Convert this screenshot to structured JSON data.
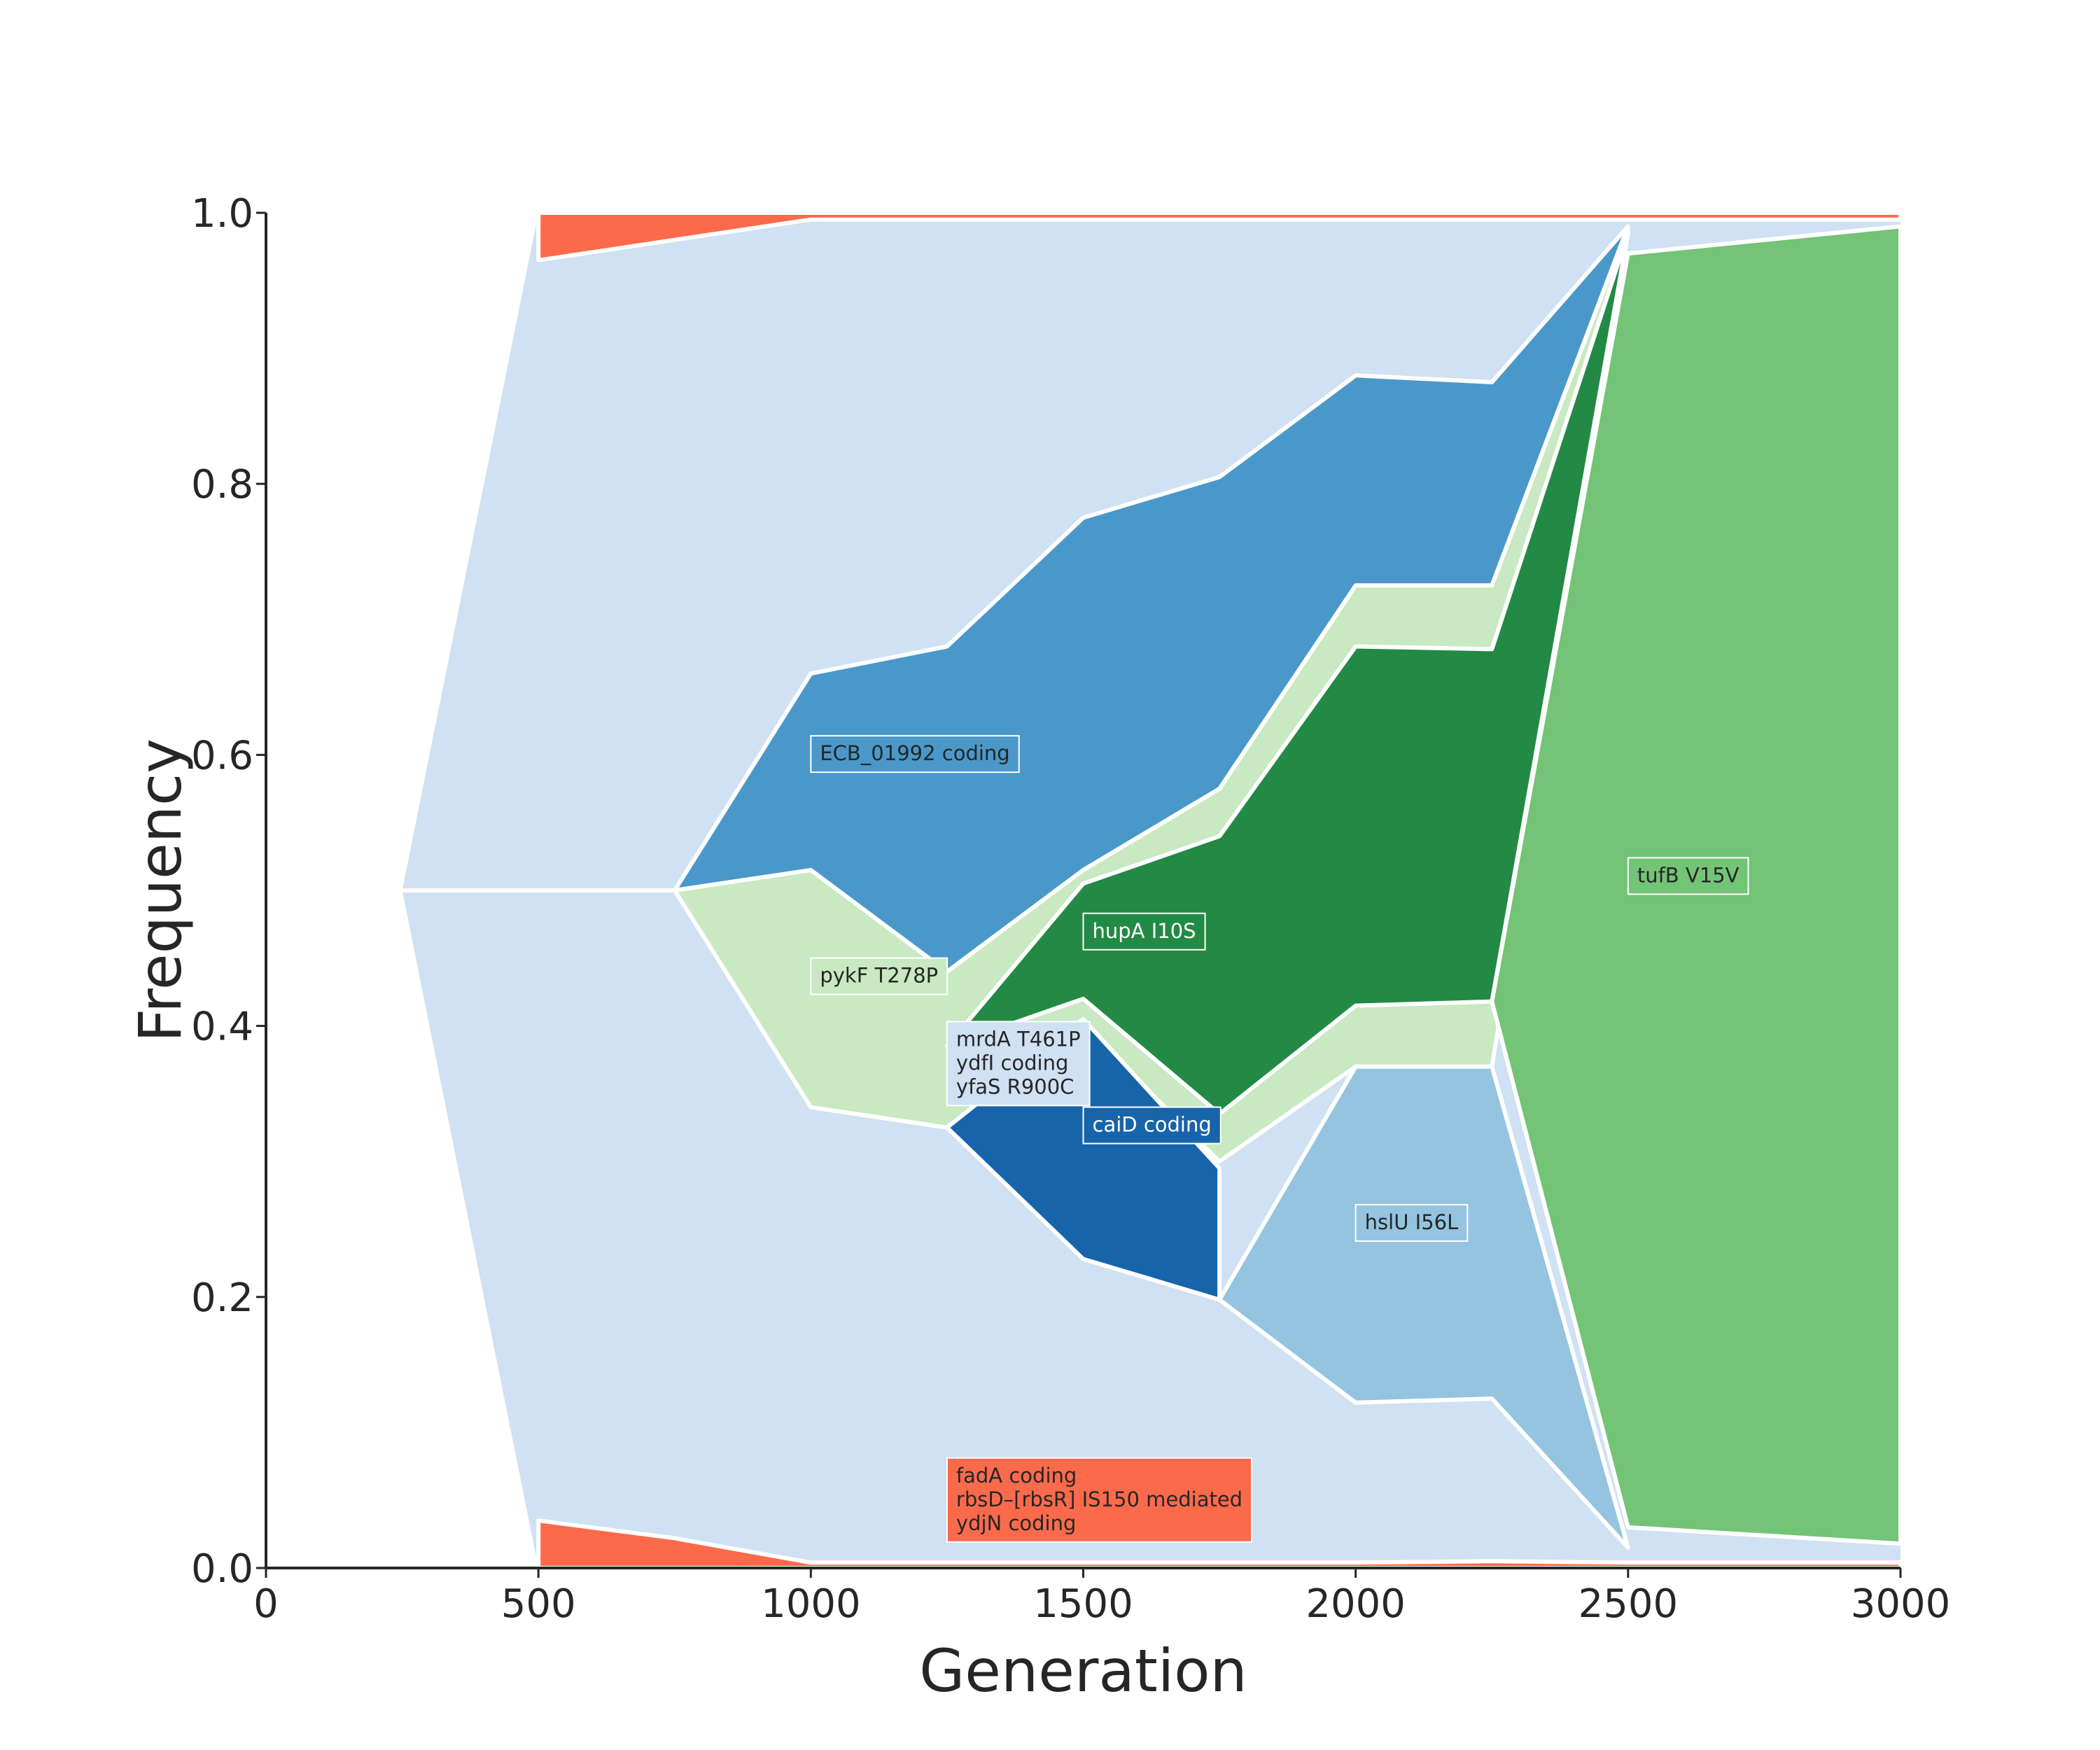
{
  "chart_data": {
    "type": "area",
    "subtype": "muller-plot",
    "title": "",
    "xlabel": "Generation",
    "ylabel": "Frequency",
    "xlim": [
      0,
      3000
    ],
    "ylim": [
      0,
      1
    ],
    "xticks": [
      0,
      500,
      1000,
      1500,
      2000,
      2500,
      3000
    ],
    "xtick_labels": [
      "0",
      "500",
      "1000",
      "1500",
      "2000",
      "2500",
      "3000"
    ],
    "yticks": [
      0,
      0.2,
      0.4,
      0.6,
      0.8,
      1.0
    ],
    "ytick_labels": [
      "0.0",
      "0.2",
      "0.4",
      "0.6",
      "0.8",
      "1.0"
    ],
    "grid": false,
    "legend": "none",
    "colors": {
      "ancestor": "#cfe1f2",
      "orange": "#fc6a4c",
      "ecb": "#4a98c9",
      "pale_green": "#c8e9c1",
      "dark_green": "#228a44",
      "dark_blue": "#1764ab",
      "mid_blue": "#94c4df",
      "mid_green": "#73c476",
      "border": "#ffffff"
    },
    "series": [
      {
        "name": "fadA coding / rbsD–[rbsR] IS150 mediated / ydjN coding",
        "color": "#fc6a4c",
        "x": [
          500,
          750,
          1000,
          1250,
          1500,
          1750,
          2000,
          2250,
          2500,
          3000
        ],
        "top": [
          1.0,
          1.0,
          1.0,
          1.0,
          1.0,
          1.0,
          1.0,
          1.0,
          1.0,
          1.0
        ],
        "bottom": [
          0.965,
          0.98,
          0.995,
          0.995,
          0.995,
          0.995,
          0.995,
          0.995,
          0.995,
          0.995
        ]
      },
      {
        "name": "fadA coding / rbsD–[rbsR] IS150 mediated / ydjN coding",
        "color": "#fc6a4c",
        "x": [
          500,
          750,
          1000,
          1250,
          1500,
          1750,
          2000,
          2250,
          2500,
          3000
        ],
        "top": [
          0.035,
          0.022,
          0.004,
          0.004,
          0.004,
          0.004,
          0.004,
          0.005,
          0.004,
          0.004
        ],
        "bottom": [
          0,
          0,
          0,
          0,
          0,
          0,
          0,
          0,
          0,
          0
        ]
      },
      {
        "name": "ECB_01992 coding",
        "color": "#4a98c9",
        "x": [
          750,
          1000,
          1250,
          1500,
          1750,
          2000,
          2250,
          2500
        ],
        "top": [
          0.5,
          0.66,
          0.68,
          0.775,
          0.805,
          0.88,
          0.875,
          0.99
        ],
        "bottom": [
          0.5,
          0.515,
          0.44,
          0.515,
          0.575,
          0.725,
          0.725,
          0.99
        ]
      },
      {
        "name": "pykF T278P",
        "color": "#c8e9c1",
        "x": [
          750,
          1000,
          1250,
          1500,
          1750,
          2000,
          2250,
          2500
        ],
        "top": [
          0.5,
          0.515,
          0.44,
          0.515,
          0.575,
          0.725,
          0.725,
          0.99
        ],
        "bottom": [
          0.5,
          0.34,
          0.325,
          0.4,
          0.3,
          0.37,
          0.37,
          0.985
        ]
      },
      {
        "name": "hupA I10S",
        "color": "#228a44",
        "x": [
          1250,
          1500,
          1750,
          2000,
          2250,
          2500
        ],
        "top": [
          0.385,
          0.505,
          0.54,
          0.68,
          0.678,
          0.985
        ],
        "bottom": [
          0.385,
          0.42,
          0.335,
          0.415,
          0.418,
          0.985
        ]
      },
      {
        "name": "caiD coding",
        "color": "#1764ab",
        "x": [
          1250,
          1500,
          1750
        ],
        "top": [
          0.325,
          0.405,
          0.295
        ],
        "bottom": [
          0.325,
          0.228,
          0.198
        ]
      },
      {
        "name": "hslU I56L",
        "color": "#94c4df",
        "x": [
          1750,
          2000,
          2250,
          2500
        ],
        "top": [
          0.198,
          0.37,
          0.37,
          0.015
        ],
        "bottom": [
          0.198,
          0.122,
          0.125,
          0.015
        ]
      },
      {
        "name": "tufB V15V",
        "color": "#73c476",
        "x": [
          2250,
          2500,
          3000
        ],
        "top": [
          0.418,
          0.97,
          0.99
        ],
        "bottom": [
          0.418,
          0.03,
          0.018
        ]
      }
    ],
    "annotations": [
      {
        "lines": [
          "ECB_01992 coding"
        ],
        "x": 1000,
        "y": 0.596,
        "style": "ecb"
      },
      {
        "lines": [
          "pykF T278P"
        ],
        "x": 1000,
        "y": 0.432,
        "style": "pale_green"
      },
      {
        "lines": [
          "hupA I10S"
        ],
        "x": 1500,
        "y": 0.465,
        "style": "dark_green"
      },
      {
        "lines": [
          "mrdA T461P",
          "ydfI coding",
          "yfaS R900C"
        ],
        "x": 1250,
        "y": 0.35,
        "style": "ancestor"
      },
      {
        "lines": [
          "caiD coding"
        ],
        "x": 1500,
        "y": 0.322,
        "style": "dark_blue"
      },
      {
        "lines": [
          "hslU I56L"
        ],
        "x": 2000,
        "y": 0.25,
        "style": "mid_blue"
      },
      {
        "lines": [
          "tufB V15V"
        ],
        "x": 2500,
        "y": 0.506,
        "style": "mid_green"
      },
      {
        "lines": [
          "fadA coding",
          "rbsD–[rbsR] IS150 mediated",
          "ydjN coding"
        ],
        "x": 1250,
        "y": 0.028,
        "style": "orange"
      }
    ]
  }
}
